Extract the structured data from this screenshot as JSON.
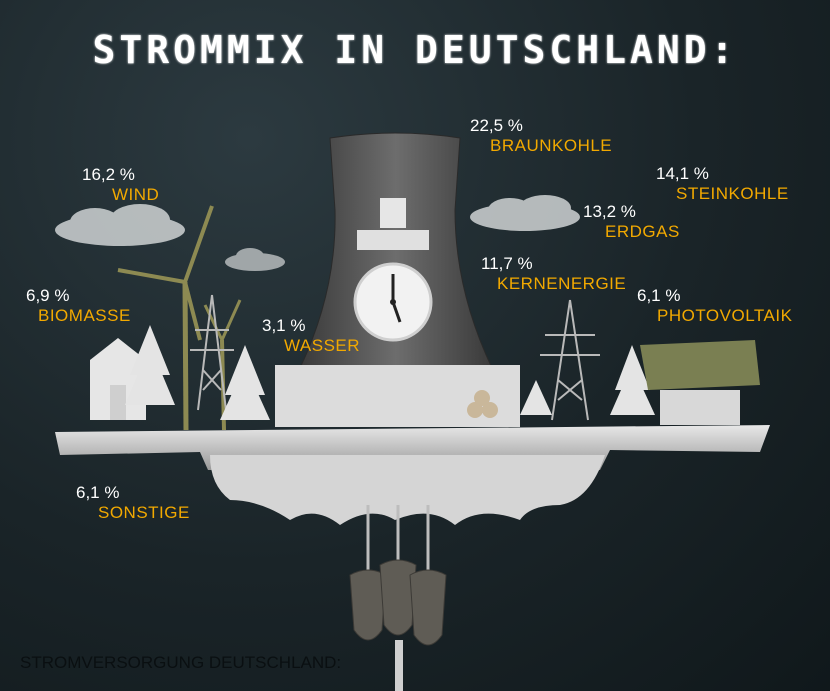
{
  "title": "STROMMIX IN DEUTSCHLAND:",
  "footer": "STROMVERSORGUNG DEUTSCHLAND:",
  "colors": {
    "percent": "#ffffff",
    "label": "#f2a900",
    "background": "#1a2428"
  },
  "shares": [
    {
      "label": "BRAUNKOHLE",
      "percent": "22,5 %",
      "value": 22.5
    },
    {
      "label": "WIND",
      "percent": "16,2 %",
      "value": 16.2
    },
    {
      "label": "STEINKOHLE",
      "percent": "14,1 %",
      "value": 14.1
    },
    {
      "label": "ERDGAS",
      "percent": "13,2 %",
      "value": 13.2
    },
    {
      "label": "KERNENERGIE",
      "percent": "11,7 %",
      "value": 11.7
    },
    {
      "label": "BIOMASSE",
      "percent": "6,9 %",
      "value": 6.9
    },
    {
      "label": "PHOTOVOLTAIK",
      "percent": "6,1 %",
      "value": 6.1
    },
    {
      "label": "WASSER",
      "percent": "3,1 %",
      "value": 3.1
    },
    {
      "label": "SONSTIGE",
      "percent": "6,1 %",
      "value": 6.1
    }
  ]
}
